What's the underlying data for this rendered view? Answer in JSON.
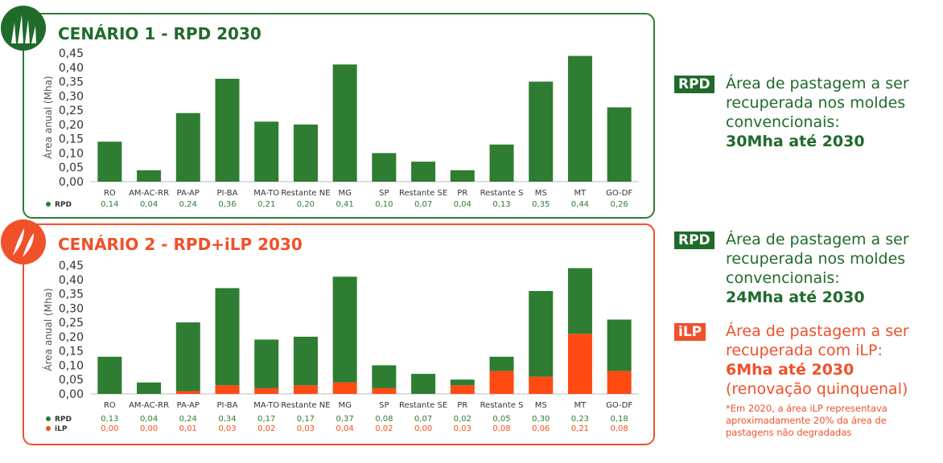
{
  "colors": {
    "green": "#1f6b2a",
    "orange": "#f0502a",
    "bar_green": "#2e7d32",
    "bar_orange": "#ff4a14"
  },
  "panel1": {
    "title": "CENÁRIO 1 - RPD 2030",
    "icon": "grass-icon",
    "chart_data": {
      "type": "bar",
      "ylabel": "Área anual (Mha)",
      "ylim": [
        0,
        0.45
      ],
      "yticks": [
        "0,00",
        "0,05",
        "0,10",
        "0,15",
        "0,20",
        "0,25",
        "0,30",
        "0,35",
        "0,40",
        "0,45"
      ],
      "categories": [
        "RO",
        "AM-AC-RR",
        "PA-AP",
        "PI-BA",
        "MA-TO",
        "Restante NE",
        "MG",
        "SP",
        "Restante SE",
        "PR",
        "Restante S",
        "MS",
        "MT",
        "GO-DF"
      ],
      "series": [
        {
          "name": "RPD",
          "color": "#2e7d32",
          "values": [
            0.14,
            0.04,
            0.24,
            0.36,
            0.21,
            0.2,
            0.41,
            0.1,
            0.07,
            0.04,
            0.13,
            0.35,
            0.44,
            0.26
          ],
          "labels": [
            "0,14",
            "0,04",
            "0,24",
            "0,36",
            "0,21",
            "0,20",
            "0,41",
            "0,10",
            "0,07",
            "0,04",
            "0,13",
            "0,35",
            "0,44",
            "0,26"
          ]
        }
      ]
    }
  },
  "panel2": {
    "title": "CENÁRIO 2 - RPD+iLP 2030",
    "icon": "leaf-icon",
    "chart_data": {
      "type": "bar",
      "stacked": true,
      "ylabel": "Área anual (Mha)",
      "ylim": [
        0,
        0.45
      ],
      "yticks": [
        "0,00",
        "0,05",
        "0,10",
        "0,15",
        "0,20",
        "0,25",
        "0,30",
        "0,35",
        "0,40",
        "0,45"
      ],
      "categories": [
        "RO",
        "AM-AC-RR",
        "PA-AP",
        "PI-BA",
        "MA-TO",
        "Restante NE",
        "MG",
        "SP",
        "Restante SE",
        "PR",
        "Restante S",
        "MS",
        "MT",
        "GO-DF"
      ],
      "series": [
        {
          "name": "iLP",
          "color": "#ff4a14",
          "values": [
            0.0,
            0.0,
            0.01,
            0.03,
            0.02,
            0.03,
            0.04,
            0.02,
            0.0,
            0.03,
            0.08,
            0.06,
            0.21,
            0.08
          ],
          "labels": [
            "0,00",
            "0,00",
            "0,01",
            "0,03",
            "0,02",
            "0,03",
            "0,04",
            "0,02",
            "0,00",
            "0,03",
            "0,08",
            "0,06",
            "0,21",
            "0,08"
          ]
        },
        {
          "name": "RPD",
          "color": "#2e7d32",
          "values": [
            0.13,
            0.04,
            0.24,
            0.34,
            0.17,
            0.17,
            0.37,
            0.08,
            0.07,
            0.02,
            0.05,
            0.3,
            0.23,
            0.18
          ],
          "labels": [
            "0,13",
            "0,04",
            "0,24",
            "0,34",
            "0,17",
            "0,17",
            "0,37",
            "0,08",
            "0,07",
            "0,02",
            "0,05",
            "0,30",
            "0,23",
            "0,18"
          ]
        }
      ]
    }
  },
  "side": {
    "block1": {
      "tag": "RPD",
      "line1": "Área de pastagem a ser recuperada nos moldes convencionais:",
      "bold": "30Mha até 2030"
    },
    "block2": {
      "tag": "RPD",
      "line1": "Área de pastagem a ser recuperada nos moldes convencionais:",
      "bold": "24Mha até 2030"
    },
    "block3": {
      "tag": "iLP",
      "line1": "Área de pastagem a ser recuperada com iLP:",
      "bold": "6Mha até 2030",
      "line2": "(renovação quinquenal)"
    },
    "note": "*Em 2020, a área iLP representava aproximadamente 20% da área de pastagens não degradadas"
  }
}
